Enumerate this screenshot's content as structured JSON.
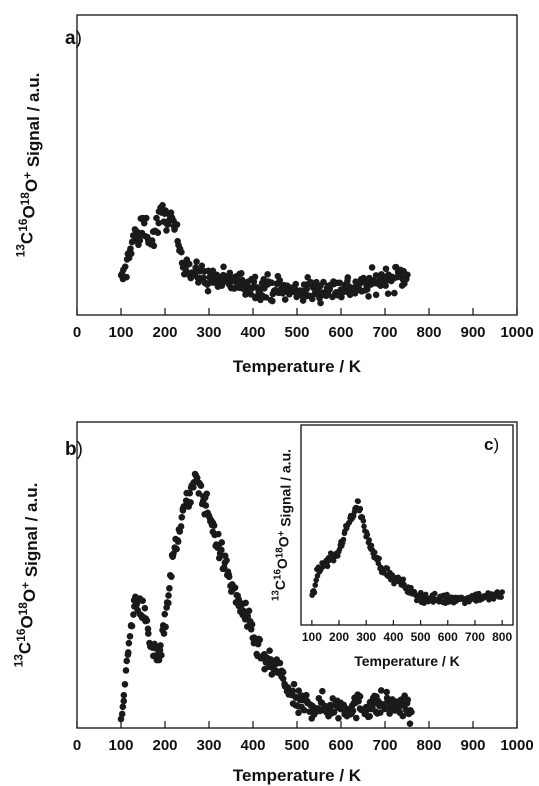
{
  "chart_data": [
    {
      "id": "a",
      "panel_label": "a",
      "type": "scatter",
      "xlabel": "Temperature / K",
      "ylabel": {
        "parts": [
          {
            "t": "13",
            "sup": true
          },
          {
            "t": "C",
            "sup": false
          },
          {
            "t": "16",
            "sup": true
          },
          {
            "t": "O",
            "sup": false
          },
          {
            "t": "18",
            "sup": true
          },
          {
            "t": "O",
            "sup": false
          },
          {
            "t": "+",
            "sup": true
          },
          {
            "t": " Signal / a.u.",
            "sup": false
          }
        ]
      },
      "xlim": [
        0,
        1000
      ],
      "ylim": [
        0,
        1
      ],
      "x_ticks": [
        0,
        100,
        200,
        300,
        400,
        500,
        600,
        700,
        800,
        900,
        1000
      ],
      "x_tick_labels": [
        "0",
        "100",
        "200",
        "300",
        "400",
        "500",
        "600",
        "700",
        "800",
        "900",
        "1000"
      ],
      "y_ticks_shown": false,
      "grid": false,
      "keypoints": [
        [
          100,
          0.11
        ],
        [
          110,
          0.14
        ],
        [
          120,
          0.22
        ],
        [
          130,
          0.27
        ],
        [
          140,
          0.24
        ],
        [
          150,
          0.31
        ],
        [
          160,
          0.28
        ],
        [
          170,
          0.24
        ],
        [
          180,
          0.29
        ],
        [
          190,
          0.33
        ],
        [
          200,
          0.33
        ],
        [
          210,
          0.32
        ],
        [
          220,
          0.3
        ],
        [
          230,
          0.24
        ],
        [
          240,
          0.19
        ],
        [
          250,
          0.17
        ],
        [
          260,
          0.14
        ],
        [
          280,
          0.13
        ],
        [
          300,
          0.12
        ],
        [
          350,
          0.11
        ],
        [
          400,
          0.1
        ],
        [
          450,
          0.09
        ],
        [
          480,
          0.08
        ],
        [
          500,
          0.08
        ],
        [
          550,
          0.085
        ],
        [
          600,
          0.09
        ],
        [
          650,
          0.095
        ],
        [
          700,
          0.12
        ],
        [
          750,
          0.13
        ]
      ]
    },
    {
      "id": "b",
      "panel_label": "b",
      "type": "scatter",
      "xlabel": "Temperature / K",
      "ylabel": {
        "parts": [
          {
            "t": "13",
            "sup": true
          },
          {
            "t": "C",
            "sup": false
          },
          {
            "t": "16",
            "sup": true
          },
          {
            "t": "O",
            "sup": false
          },
          {
            "t": "18",
            "sup": true
          },
          {
            "t": "O",
            "sup": false
          },
          {
            "t": "+",
            "sup": true
          },
          {
            "t": " Signal / a.u.",
            "sup": false
          }
        ]
      },
      "xlim": [
        0,
        1000
      ],
      "ylim": [
        0,
        1
      ],
      "x_ticks": [
        0,
        100,
        200,
        300,
        400,
        500,
        600,
        700,
        800,
        900,
        1000
      ],
      "x_tick_labels": [
        "0",
        "100",
        "200",
        "300",
        "400",
        "500",
        "600",
        "700",
        "800",
        "900",
        "1000"
      ],
      "y_ticks_shown": false,
      "grid": false,
      "keypoints": [
        [
          100,
          0.05
        ],
        [
          110,
          0.15
        ],
        [
          120,
          0.3
        ],
        [
          130,
          0.4
        ],
        [
          140,
          0.42
        ],
        [
          150,
          0.38
        ],
        [
          160,
          0.32
        ],
        [
          170,
          0.25
        ],
        [
          180,
          0.24
        ],
        [
          190,
          0.26
        ],
        [
          200,
          0.36
        ],
        [
          210,
          0.46
        ],
        [
          220,
          0.57
        ],
        [
          230,
          0.64
        ],
        [
          240,
          0.7
        ],
        [
          250,
          0.73
        ],
        [
          260,
          0.78
        ],
        [
          270,
          0.8
        ],
        [
          280,
          0.79
        ],
        [
          290,
          0.74
        ],
        [
          300,
          0.7
        ],
        [
          320,
          0.6
        ],
        [
          340,
          0.52
        ],
        [
          360,
          0.43
        ],
        [
          380,
          0.38
        ],
        [
          400,
          0.3
        ],
        [
          420,
          0.23
        ],
        [
          440,
          0.2
        ],
        [
          460,
          0.19
        ],
        [
          480,
          0.12
        ],
        [
          500,
          0.08
        ],
        [
          550,
          0.07
        ],
        [
          600,
          0.07
        ],
        [
          650,
          0.07
        ],
        [
          700,
          0.08
        ],
        [
          760,
          0.06
        ]
      ]
    },
    {
      "id": "c",
      "panel_label": "c",
      "type": "scatter",
      "inset_of": "b",
      "xlabel": "Temperature / K",
      "ylabel": {
        "parts": [
          {
            "t": "13",
            "sup": true
          },
          {
            "t": "C",
            "sup": false
          },
          {
            "t": "16",
            "sup": true
          },
          {
            "t": "O",
            "sup": false
          },
          {
            "t": "18",
            "sup": true
          },
          {
            "t": "O",
            "sup": false
          },
          {
            "t": "+",
            "sup": true
          },
          {
            "t": " Signal / a.u.",
            "sup": false
          }
        ]
      },
      "xlim": [
        60,
        840
      ],
      "ylim": [
        0,
        1
      ],
      "x_ticks": [
        100,
        200,
        300,
        400,
        500,
        600,
        700,
        800
      ],
      "x_tick_labels": [
        "100",
        "200",
        "300",
        "400",
        "500",
        "600",
        "700",
        "800"
      ],
      "y_ticks_shown": false,
      "grid": false,
      "keypoints": [
        [
          100,
          0.12
        ],
        [
          120,
          0.26
        ],
        [
          140,
          0.3
        ],
        [
          160,
          0.32
        ],
        [
          180,
          0.34
        ],
        [
          200,
          0.37
        ],
        [
          220,
          0.45
        ],
        [
          240,
          0.53
        ],
        [
          260,
          0.58
        ],
        [
          270,
          0.61
        ],
        [
          280,
          0.56
        ],
        [
          300,
          0.45
        ],
        [
          320,
          0.38
        ],
        [
          340,
          0.33
        ],
        [
          360,
          0.28
        ],
        [
          380,
          0.26
        ],
        [
          400,
          0.23
        ],
        [
          420,
          0.22
        ],
        [
          440,
          0.2
        ],
        [
          460,
          0.17
        ],
        [
          480,
          0.15
        ],
        [
          500,
          0.14
        ],
        [
          550,
          0.13
        ],
        [
          600,
          0.13
        ],
        [
          650,
          0.13
        ],
        [
          700,
          0.14
        ],
        [
          750,
          0.14
        ],
        [
          800,
          0.15
        ]
      ]
    }
  ]
}
